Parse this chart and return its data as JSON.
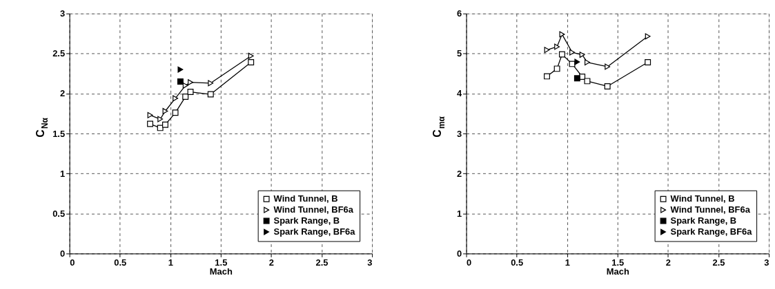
{
  "chart_data": [
    {
      "type": "line",
      "xlabel": "Mach",
      "ylabel": "C$_{Nα}$",
      "xlim": [
        0,
        3
      ],
      "xticks": [
        0,
        0.5,
        1,
        1.5,
        2,
        2.5,
        3
      ],
      "ylim": [
        0,
        3
      ],
      "yticks": [
        0,
        0.5,
        1,
        1.5,
        2,
        2.5,
        3
      ],
      "grid": true,
      "legend": "bottom right",
      "series": [
        {
          "name": "Wind Tunnel, B",
          "marker": "square",
          "color": "#000000",
          "x": [
            0.8,
            0.9,
            0.95,
            1.05,
            1.15,
            1.2,
            1.4,
            1.8
          ],
          "values": [
            1.62,
            1.57,
            1.61,
            1.76,
            1.96,
            2.02,
            1.99,
            2.39
          ]
        },
        {
          "name": "Wind Tunnel, BF6a",
          "marker": "triangle",
          "color": "#000000",
          "x": [
            0.8,
            0.9,
            0.95,
            1.05,
            1.15,
            1.2,
            1.4,
            1.8
          ],
          "values": [
            1.73,
            1.68,
            1.78,
            1.94,
            2.1,
            2.14,
            2.13,
            2.47
          ]
        },
        {
          "name": "Spark Range, B",
          "type": "scatter",
          "marker": "square",
          "color": "#000000",
          "x": [
            1.1
          ],
          "values": [
            2.15
          ]
        },
        {
          "name": "Spark Range, BF6a",
          "type": "scatter",
          "marker": "triangle",
          "color": "#000000",
          "x": [
            1.1
          ],
          "values": [
            2.3
          ]
        }
      ]
    },
    {
      "type": "line",
      "xlabel": "Mach",
      "ylabel": "C$_{mα}$",
      "xlim": [
        0,
        3
      ],
      "xticks": [
        0,
        0.5,
        1,
        1.5,
        2,
        2.5,
        3
      ],
      "ylim": [
        0,
        6
      ],
      "yticks": [
        0,
        1,
        2,
        3,
        4,
        5,
        6
      ],
      "grid": true,
      "legend": "bottom right",
      "series": [
        {
          "name": "Wind Tunnel, B",
          "marker": "square",
          "color": "#000000",
          "x": [
            0.8,
            0.9,
            0.95,
            1.05,
            1.15,
            1.2,
            1.4,
            1.8
          ],
          "values": [
            4.43,
            4.62,
            4.98,
            4.74,
            4.42,
            4.31,
            4.18,
            4.78
          ]
        },
        {
          "name": "Wind Tunnel, BF6a",
          "marker": "triangle",
          "color": "#000000",
          "x": [
            0.8,
            0.9,
            0.95,
            1.05,
            1.15,
            1.2,
            1.4,
            1.8
          ],
          "values": [
            5.09,
            5.17,
            5.48,
            5.03,
            4.97,
            4.78,
            4.67,
            5.43
          ]
        },
        {
          "name": "Spark Range, B",
          "type": "scatter",
          "marker": "square",
          "color": "#000000",
          "x": [
            1.1
          ],
          "values": [
            4.38
          ]
        },
        {
          "name": "Spark Range, BF6a",
          "type": "scatter",
          "marker": "triangle",
          "color": "#000000",
          "x": [
            1.1
          ],
          "values": [
            4.79
          ]
        }
      ]
    }
  ]
}
